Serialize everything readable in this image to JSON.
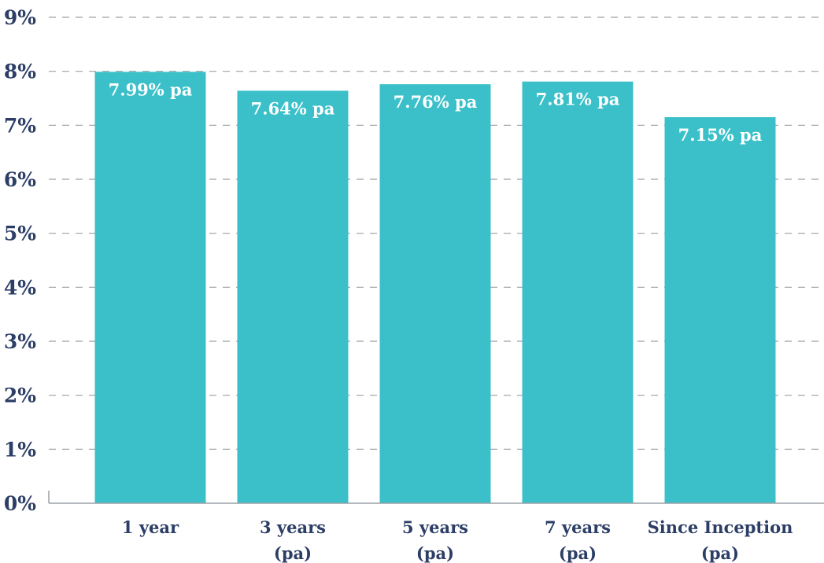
{
  "chart_data": {
    "type": "bar",
    "title": "",
    "xlabel": "",
    "ylabel": "",
    "categories": [
      [
        "1 year"
      ],
      [
        "3 years",
        "(pa)"
      ],
      [
        "5 years",
        "(pa)"
      ],
      [
        "7 years",
        "(pa)"
      ],
      [
        "Since Inception",
        "(pa)"
      ]
    ],
    "values": [
      7.99,
      7.64,
      7.76,
      7.81,
      7.15
    ],
    "data_labels": [
      "7.99% pa",
      "7.64% pa",
      "7.76% pa",
      "7.81% pa",
      "7.15% pa"
    ],
    "ylim": [
      0,
      9
    ],
    "yticks": [
      0,
      1,
      2,
      3,
      4,
      5,
      6,
      7,
      8,
      9
    ],
    "ytick_labels": [
      "0%",
      "1%",
      "2%",
      "3%",
      "4%",
      "5%",
      "6%",
      "7%",
      "8%",
      "9%"
    ],
    "grid": true,
    "legend": "none",
    "colors": {
      "bar": "#3bc0c9",
      "text": "#2c3e66",
      "grid": "#9aa0a6"
    }
  }
}
